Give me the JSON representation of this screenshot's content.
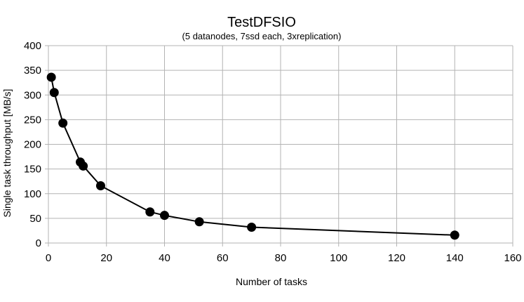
{
  "chart_data": {
    "type": "line",
    "title": "TestDFSIO",
    "subtitle": "(5 datanodes, 7ssd each, 3xreplication)",
    "xlabel": "Number of tasks",
    "ylabel": "Single task throughput [MB/s]",
    "xlim": [
      0,
      160
    ],
    "ylim": [
      0,
      400
    ],
    "xticks": [
      0,
      20,
      40,
      60,
      80,
      100,
      120,
      140,
      160
    ],
    "yticks": [
      0,
      50,
      100,
      150,
      200,
      250,
      300,
      350,
      400
    ],
    "grid": true,
    "legend": "none",
    "series": [
      {
        "x": [
          1,
          2,
          5,
          11,
          12,
          18,
          35,
          40,
          52,
          70,
          140
        ],
        "y": [
          336,
          305,
          243,
          164,
          156,
          116,
          63,
          56,
          43,
          32,
          16
        ],
        "color": "#000000"
      }
    ]
  }
}
